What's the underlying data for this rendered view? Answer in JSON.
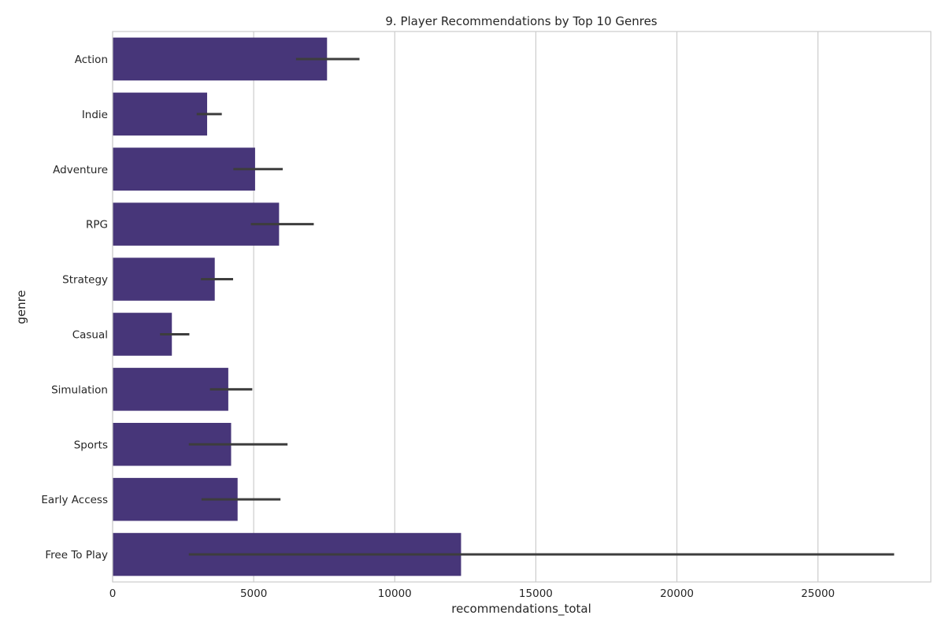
{
  "chart_data": {
    "type": "bar",
    "orientation": "horizontal",
    "title": "9. Player Recommendations by Top 10 Genres",
    "xlabel": "recommendations_total",
    "ylabel": "genre",
    "categories": [
      "Action",
      "Indie",
      "Adventure",
      "RPG",
      "Strategy",
      "Casual",
      "Simulation",
      "Sports",
      "Early Access",
      "Free To Play"
    ],
    "values": [
      7600,
      3350,
      5050,
      5900,
      3620,
      2100,
      4100,
      4200,
      4430,
      12350
    ],
    "error_low": [
      6500,
      2980,
      4280,
      4900,
      3130,
      1680,
      3450,
      2700,
      3150,
      2700
    ],
    "error_high": [
      8750,
      3870,
      6030,
      7130,
      4270,
      2720,
      4950,
      6200,
      5950,
      27700
    ],
    "xlim": [
      0,
      29000
    ],
    "xticks": [
      0,
      5000,
      10000,
      15000,
      20000,
      25000
    ],
    "grid": "x",
    "bar_color": "#473679",
    "errorbar_color": "#3d3d3d"
  }
}
